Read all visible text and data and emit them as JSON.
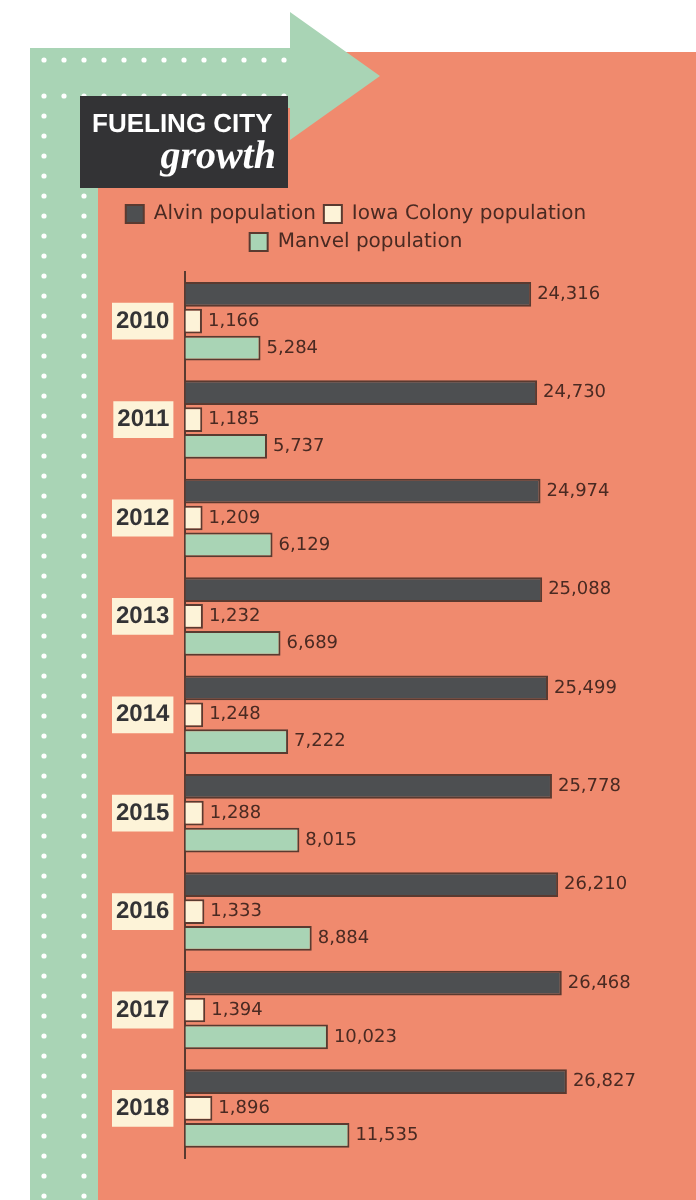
{
  "chart_data": {
    "type": "bar",
    "orientation": "horizontal",
    "title": "FUELING CITY growth",
    "categories": [
      "2010",
      "2011",
      "2012",
      "2013",
      "2014",
      "2015",
      "2016",
      "2017",
      "2018"
    ],
    "series": [
      {
        "name": "Alvin population",
        "color": "#4d4f51",
        "values": [
          24316,
          24730,
          24974,
          25088,
          25499,
          25778,
          26210,
          26468,
          26827
        ],
        "value_labels": [
          "24,316",
          "24,730",
          "24,974",
          "25,088",
          "25,499",
          "25,778",
          "26,210",
          "26,468",
          "26,827"
        ]
      },
      {
        "name": "Iowa Colony population",
        "color": "#fdf3d8",
        "values": [
          1166,
          1185,
          1209,
          1232,
          1248,
          1288,
          1333,
          1394,
          1896
        ],
        "value_labels": [
          "1,166",
          "1,185",
          "1,209",
          "1,232",
          "1,248",
          "1,288",
          "1,333",
          "1,394",
          "1,896"
        ]
      },
      {
        "name": "Manvel population",
        "color": "#a9d4b5",
        "values": [
          5284,
          5737,
          6129,
          6689,
          7222,
          8015,
          8884,
          10023,
          11535
        ],
        "value_labels": [
          "5,284",
          "5,737",
          "6,129",
          "6,689",
          "7,222",
          "8,015",
          "8,884",
          "10,023",
          "11,535"
        ]
      }
    ],
    "legend": "top",
    "grid": false
  }
}
